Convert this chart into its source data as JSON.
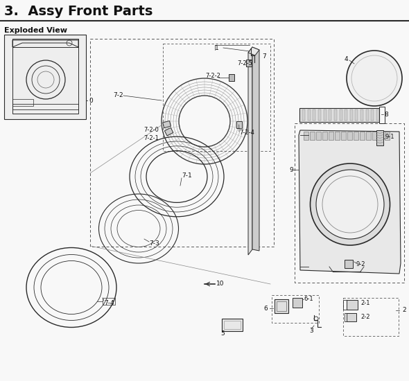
{
  "title": "3.  Assy Front Parts",
  "subtitle": "Exploded View",
  "bg_color": "#f8f8f8",
  "line_color": "#2a2a2a",
  "label_color": "#111111",
  "title_fontsize": 14,
  "subtitle_fontsize": 8,
  "label_fontsize": 6.5,
  "dpi": 100,
  "figw": 5.9,
  "figh": 5.5
}
